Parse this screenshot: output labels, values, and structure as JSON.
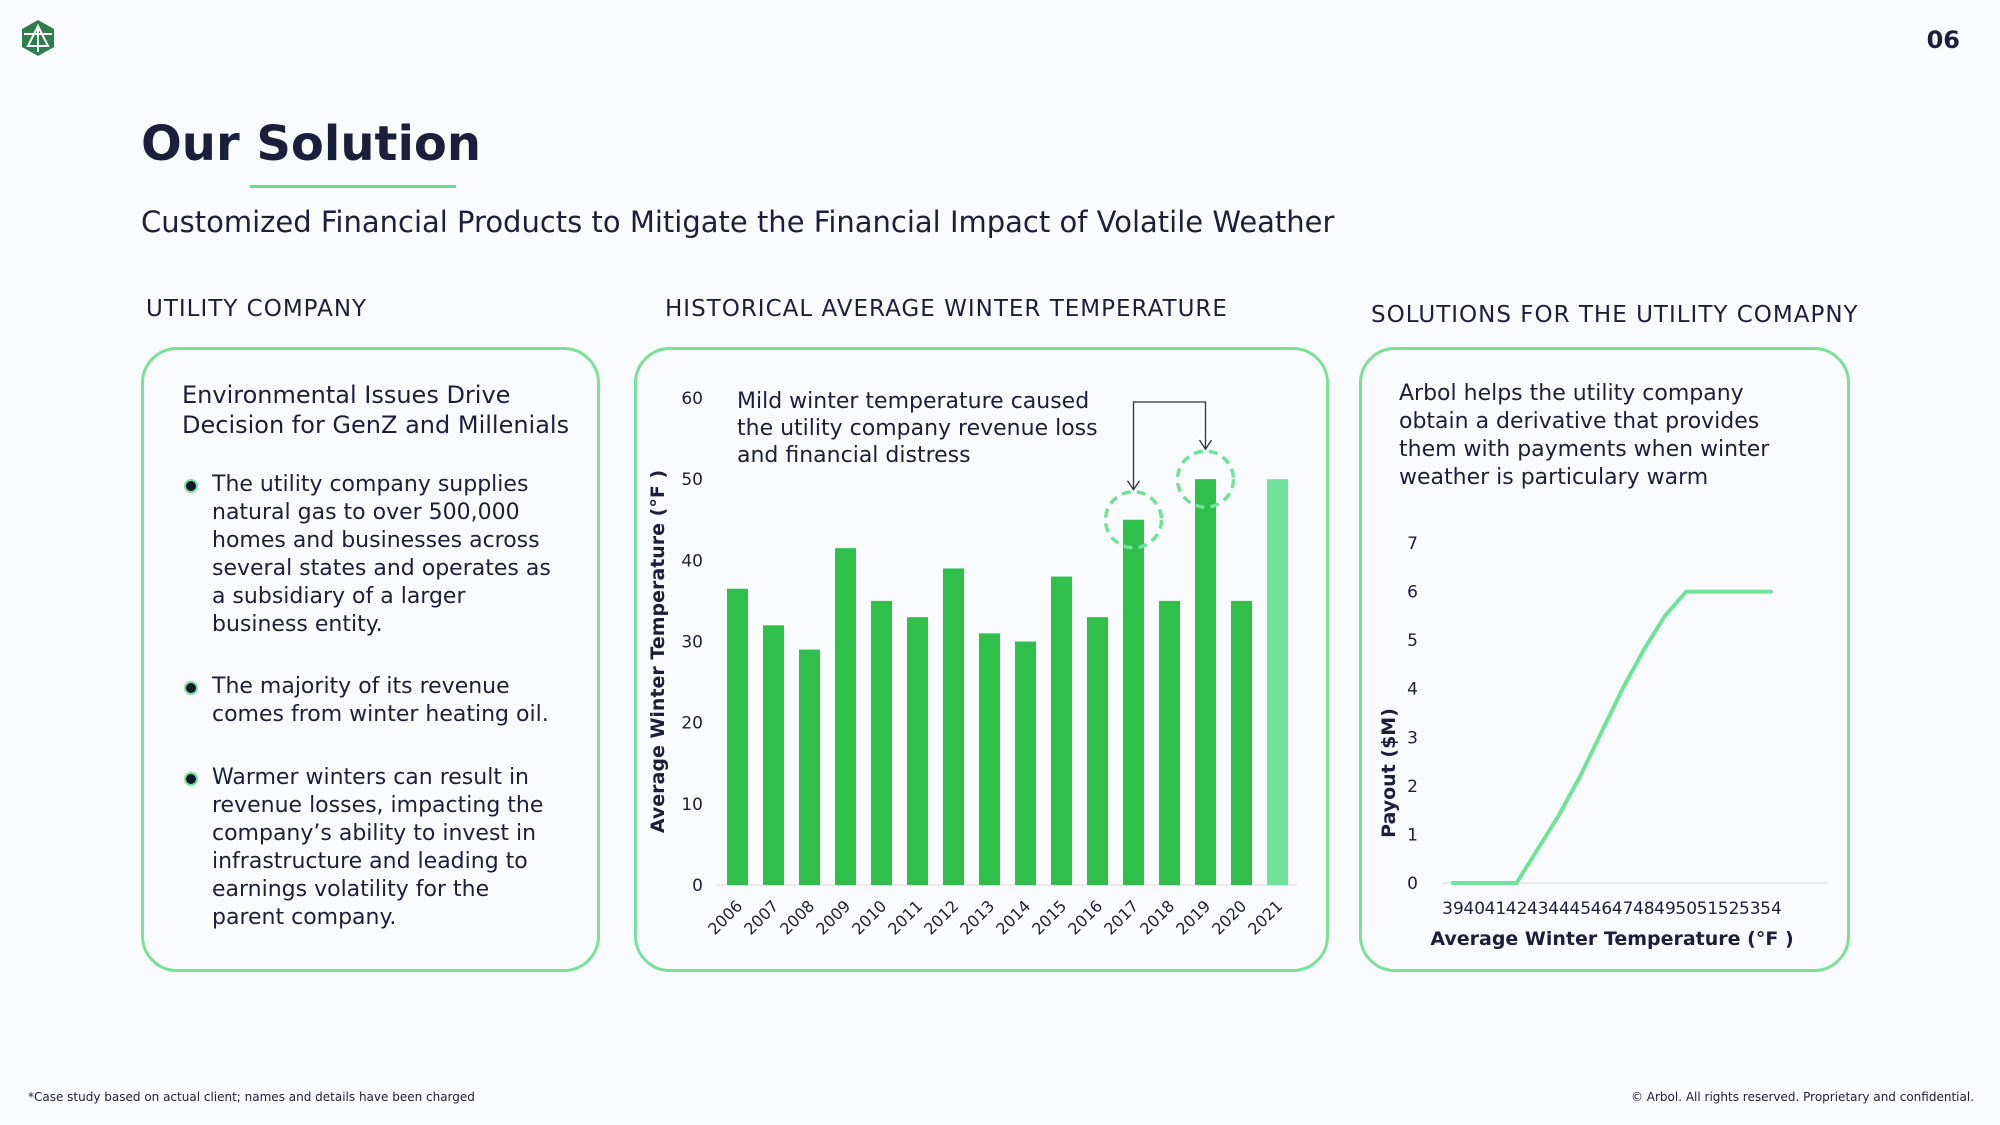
{
  "page": {
    "number": "06",
    "logo_icon": "arbol-logo-icon"
  },
  "title": "Our Solution",
  "subtitle": "Customized Financial Products to Mitigate the Financial Impact of Volatile Weather",
  "left": {
    "heading": "UTILITY COMPANY",
    "card_title": "Environmental Issues Drive Decision for GenZ and Millenials",
    "bullets": [
      "The utility company supplies natural gas to over 500,000 homes and businesses across several states and operates as a subsidiary of a larger business entity.",
      "The majority of its revenue comes from winter heating oil.",
      "Warmer winters can result in revenue losses, impacting the company’s ability to invest in infrastructure and leading to earnings volatility for the parent company."
    ]
  },
  "middle": {
    "heading": "HISTORICAL AVERAGE WINTER TEMPERATURE",
    "annotation": "Mild winter temperature caused the utility company revenue loss and financial distress"
  },
  "right": {
    "heading": "SOLUTIONS FOR THE UTILITY COMAPNY",
    "text": "Arbol helps the utility company obtain a derivative that provides them with payments when winter weather is particulary warm"
  },
  "chart_data": [
    {
      "type": "bar",
      "categories": [
        "2006",
        "2007",
        "2008",
        "2009",
        "2010",
        "2011",
        "2012",
        "2013",
        "2014",
        "2015",
        "2016",
        "2017",
        "2018",
        "2019",
        "2020",
        "2021"
      ],
      "values": [
        36.5,
        32,
        29,
        41.5,
        35,
        33,
        39,
        31,
        30,
        38,
        33,
        45,
        35,
        50,
        35,
        50
      ],
      "highlighted_categories": [
        "2017",
        "2019"
      ],
      "light_bar_category": "2021",
      "ylabel": "Average Winter Temperature (°F )",
      "ylim": [
        0,
        60
      ],
      "yticks": [
        0,
        10,
        20,
        30,
        40,
        50,
        60
      ],
      "colors": {
        "bar": "#2fbf4a",
        "bar_light": "#6fe39a",
        "highlight_circle": "#6fe39a"
      }
    },
    {
      "type": "line",
      "x": [
        39,
        40,
        41,
        42,
        43,
        44,
        45,
        46,
        47,
        48,
        49,
        50,
        51,
        52,
        53,
        54
      ],
      "values": [
        0,
        0,
        0,
        0,
        0.7,
        1.4,
        2.2,
        3.1,
        4.0,
        4.8,
        5.5,
        6,
        6,
        6,
        6,
        6
      ],
      "xlabel": "Average Winter Temperature (°F )",
      "ylabel": "Payout ($M)",
      "ylim": [
        0,
        7
      ],
      "yticks": [
        0,
        1,
        2,
        3,
        4,
        5,
        6,
        7
      ],
      "colors": {
        "line": "#6fe39a"
      }
    }
  ],
  "footer": {
    "note": "*Case study based on actual client; names and details have been charged",
    "copyright": "© Arbol. All rights reserved. Proprietary and confidential."
  }
}
